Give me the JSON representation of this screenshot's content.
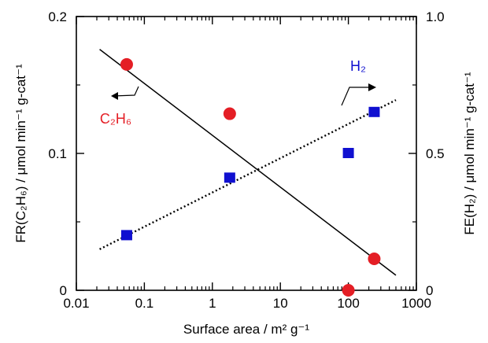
{
  "chart_data": {
    "type": "scatter",
    "xlabel": "Surface area /  m² g⁻¹",
    "x_scale": "log",
    "xlim": [
      0.01,
      1000
    ],
    "x_ticks": [
      "0.01",
      "0.1",
      "1",
      "10",
      "100",
      "1000"
    ],
    "ylabel_left": "FR(C₂H₆) / μmol min⁻¹ g-cat⁻¹",
    "ylim_left": [
      0,
      0.2
    ],
    "y_ticks_left": [
      "0",
      "0.1",
      "0.2"
    ],
    "ylabel_right": "FE(H₂) / μmol min⁻¹ g-cat⁻¹",
    "ylim_right": [
      0,
      1.0
    ],
    "y_ticks_right": [
      "0",
      "0.5",
      "1.0"
    ],
    "grid": false,
    "series": [
      {
        "name": "C₂H₆",
        "axis": "left",
        "marker": "circle",
        "color": "#e41e25",
        "points": [
          {
            "x": 0.055,
            "y": 0.165
          },
          {
            "x": 1.8,
            "y": 0.129
          },
          {
            "x": 100,
            "y": 0.0
          },
          {
            "x": 240,
            "y": 0.023
          }
        ],
        "trend": {
          "style": "solid",
          "color": "#000000",
          "from": {
            "x": 0.022,
            "y": 0.176
          },
          "to": {
            "x": 500,
            "y": 0.011
          }
        }
      },
      {
        "name": "H₂",
        "axis": "right",
        "marker": "square",
        "color": "#1010d0",
        "points": [
          {
            "x": 0.055,
            "y": 0.2
          },
          {
            "x": 1.8,
            "y": 0.41
          },
          {
            "x": 100,
            "y": 0.5
          },
          {
            "x": 240,
            "y": 0.65
          }
        ],
        "trend": {
          "style": "dotted",
          "color": "#000000",
          "from": {
            "x": 0.022,
            "y": 0.15
          },
          "to": {
            "x": 500,
            "y": 0.695
          }
        }
      }
    ],
    "annotations": [
      {
        "series": "C₂H₆",
        "label": "C₂H₆",
        "color": "#e41e25",
        "arrow": "left"
      },
      {
        "series": "H₂",
        "label": "H₂",
        "color": "#1010d0",
        "arrow": "right"
      }
    ]
  }
}
